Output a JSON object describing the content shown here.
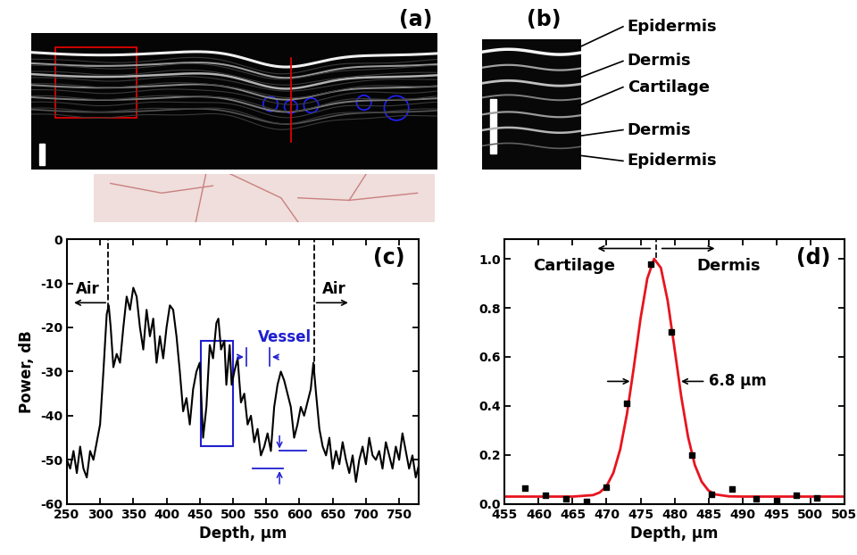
{
  "panels": {
    "a": {
      "label": "(a)"
    },
    "b": {
      "label": "(b)",
      "layers": [
        "Epidermis",
        "Dermis",
        "Cartilage",
        "Dermis",
        "Epidermis"
      ]
    }
  },
  "chart_data": [
    {
      "type": "line",
      "panel_label": "(c)",
      "color": "#000000",
      "xlabel": "Depth, μm",
      "ylabel": "Power, dB",
      "xlim": [
        250,
        780
      ],
      "ylim": [
        -60,
        0
      ],
      "xticks": [
        250,
        300,
        350,
        400,
        450,
        500,
        550,
        600,
        650,
        700,
        750
      ],
      "yticks": [
        -60,
        -50,
        -40,
        -30,
        -20,
        -10,
        0
      ],
      "x": [
        250,
        255,
        260,
        265,
        270,
        275,
        280,
        285,
        290,
        295,
        300,
        305,
        310,
        313,
        316,
        320,
        325,
        330,
        335,
        340,
        345,
        350,
        355,
        360,
        365,
        370,
        375,
        380,
        385,
        390,
        395,
        400,
        405,
        410,
        415,
        420,
        425,
        430,
        435,
        440,
        445,
        450,
        455,
        460,
        465,
        470,
        475,
        478,
        482,
        487,
        490,
        495,
        498,
        502,
        507,
        512,
        517,
        522,
        527,
        532,
        537,
        542,
        547,
        552,
        557,
        562,
        567,
        572,
        577,
        582,
        587,
        592,
        597,
        602,
        607,
        612,
        617,
        621,
        625,
        630,
        635,
        640,
        645,
        650,
        655,
        660,
        665,
        670,
        675,
        680,
        685,
        690,
        695,
        700,
        705,
        710,
        715,
        720,
        725,
        730,
        735,
        740,
        745,
        750,
        755,
        760,
        765,
        770,
        775,
        780
      ],
      "values": [
        -50,
        -52,
        -48,
        -53,
        -47,
        -52,
        -54,
        -48,
        -50,
        -46,
        -42,
        -30,
        -17,
        -15,
        -20,
        -29,
        -26,
        -28,
        -20,
        -13,
        -16,
        -11,
        -13,
        -20,
        -25,
        -16,
        -22,
        -18,
        -28,
        -22,
        -27,
        -20,
        -15,
        -16,
        -22,
        -30,
        -39,
        -36,
        -42,
        -34,
        -30,
        -28,
        -45,
        -38,
        -24,
        -27,
        -19,
        -18,
        -25,
        -23,
        -33,
        -24,
        -33,
        -30,
        -27,
        -37,
        -35,
        -42,
        -40,
        -46,
        -43,
        -49,
        -47,
        -44,
        -48,
        -38,
        -33,
        -30,
        -32,
        -35,
        -38,
        -45,
        -42,
        -38,
        -40,
        -37,
        -34,
        -28,
        -35,
        -43,
        -47,
        -49,
        -45,
        -52,
        -48,
        -51,
        -46,
        -50,
        -53,
        -49,
        -55,
        -50,
        -47,
        -51,
        -45,
        -49,
        -50,
        -48,
        -52,
        -46,
        -49,
        -52,
        -47,
        -50,
        -44,
        -48,
        -52,
        -49,
        -54,
        -51
      ],
      "air_label": "Air",
      "air_boundaries": [
        312,
        622
      ],
      "vessel_label": "Vessel",
      "vessel_color": "#1f1fd0",
      "vessel_box": {
        "x": [
          452,
          500
        ],
        "y": [
          -47,
          -23
        ]
      },
      "vessel_span": [
        520,
        555
      ],
      "noise_levels": [
        -48,
        -52
      ],
      "noise_span": [
        530,
        610
      ]
    },
    {
      "type": "scatter",
      "panel_label": "(d)",
      "color": "#000000",
      "marker": "s",
      "xlabel": "Depth, μm",
      "xlim": [
        455,
        505
      ],
      "ylim": [
        0,
        1.08
      ],
      "xticks": [
        455,
        460,
        465,
        470,
        475,
        480,
        485,
        490,
        495,
        500,
        505
      ],
      "yticks": [
        {
          "value": 0,
          "label": "0.0"
        },
        {
          "value": 0.2,
          "label": "0.2"
        },
        {
          "value": 0.4,
          "label": "0.4"
        },
        {
          "value": 0.6,
          "label": "0.6"
        },
        {
          "value": 0.8,
          "label": "0.8"
        },
        {
          "value": 1.0,
          "label": "1.0"
        }
      ],
      "x": [
        458,
        461,
        464,
        467,
        470,
        473,
        476.5,
        479.5,
        482.5,
        485.5,
        488.5,
        492,
        495,
        498,
        501
      ],
      "values": [
        0.065,
        0.035,
        0.02,
        0.01,
        0.07,
        0.41,
        0.98,
        0.7,
        0.2,
        0.04,
        0.06,
        0.02,
        0.015,
        0.035,
        0.025
      ],
      "fit": {
        "color": "#e8141e",
        "x": [
          455,
          465,
          468,
          469,
          470,
          471,
          472,
          473,
          474,
          475,
          476,
          477,
          478,
          479,
          480,
          481,
          482,
          483,
          484,
          485,
          486,
          488,
          490,
          505
        ],
        "values": [
          0.03,
          0.03,
          0.036,
          0.047,
          0.073,
          0.127,
          0.222,
          0.367,
          0.555,
          0.756,
          0.92,
          1.0,
          0.963,
          0.829,
          0.636,
          0.438,
          0.274,
          0.159,
          0.091,
          0.055,
          0.039,
          0.031,
          0.03,
          0.03
        ]
      },
      "center": 477.3,
      "left_label": "Cartilage",
      "right_label": "Dermis",
      "fwhm": {
        "label": "6.8 μm",
        "y": 0.5,
        "x": [
          473.8,
          480.6
        ]
      }
    }
  ]
}
